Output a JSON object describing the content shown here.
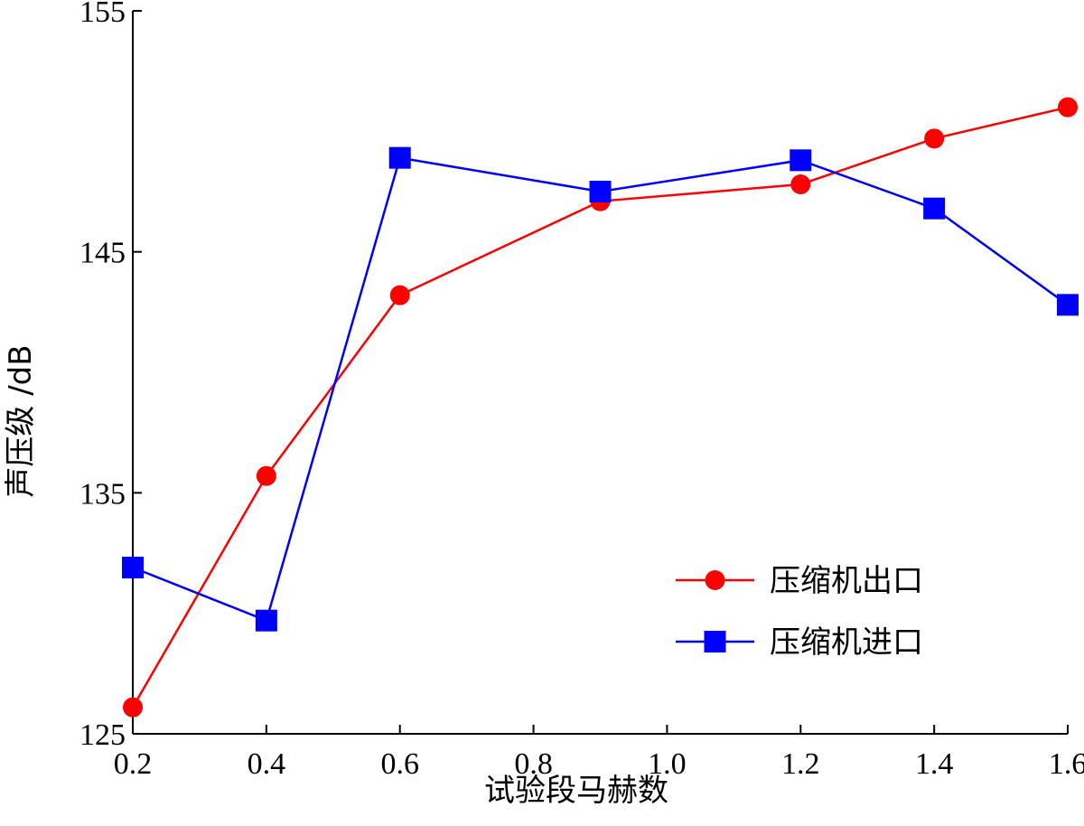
{
  "chart_data": {
    "type": "line",
    "xlabel": "试验段马赫数",
    "ylabel": "声压级 /dB",
    "x": [
      0.2,
      0.4,
      0.6,
      0.9,
      1.2,
      1.4,
      1.6
    ],
    "xlim": [
      0.2,
      1.6
    ],
    "ylim": [
      125,
      155
    ],
    "xticks": [
      "0.2",
      "0.4",
      "0.6",
      "0.8",
      "1.0",
      "1.2",
      "1.4",
      "1.6"
    ],
    "yticks": [
      "125",
      "135",
      "145",
      "155"
    ],
    "grid": false,
    "legend_position": "bottom-right",
    "series": [
      {
        "name": "压缩机出口",
        "color": "#ff0000",
        "marker": "circle",
        "values": [
          126.1,
          135.7,
          143.2,
          147.1,
          147.8,
          149.7,
          151.0
        ]
      },
      {
        "name": "压缩机进口",
        "color": "#0000ff",
        "marker": "square",
        "values": [
          131.9,
          129.7,
          148.9,
          147.5,
          148.8,
          146.8,
          142.8
        ]
      }
    ]
  }
}
